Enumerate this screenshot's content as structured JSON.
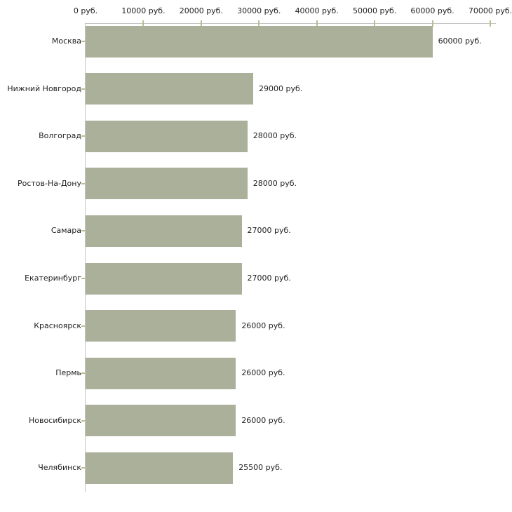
{
  "chart_data": {
    "type": "bar",
    "orientation": "horizontal",
    "title": "",
    "xlabel": "",
    "ylabel": "",
    "grid": false,
    "legend": false,
    "xlim": [
      0,
      70000
    ],
    "x_ticks": [
      0,
      10000,
      20000,
      30000,
      40000,
      50000,
      60000,
      70000
    ],
    "x_tick_labels": [
      "0 руб.",
      "10000 руб.",
      "20000 руб.",
      "30000 руб.",
      "40000 руб.",
      "50000 руб.",
      "60000 руб.",
      "70000 руб."
    ],
    "categories": [
      "Москва",
      "Нижний Новгород",
      "Волгоград",
      "Ростов-На-Дону",
      "Самара",
      "Екатеринбург",
      "Красноярск",
      "Пермь",
      "Новосибирск",
      "Челябинск"
    ],
    "values": [
      60000,
      29000,
      28000,
      28000,
      27000,
      27000,
      26000,
      26000,
      26000,
      25500
    ],
    "value_labels": [
      "60000 руб.",
      "29000 руб.",
      "28000 руб.",
      "28000 руб.",
      "27000 руб.",
      "27000 руб.",
      "26000 руб.",
      "26000 руб.",
      "26000 руб.",
      "25500 руб."
    ],
    "colors": {
      "bar": "#aab099",
      "axis_line": "#c6c6c6",
      "tick_mark": "#b9bd8f",
      "text": "#1f1f1f",
      "background": "#ffffff"
    }
  }
}
